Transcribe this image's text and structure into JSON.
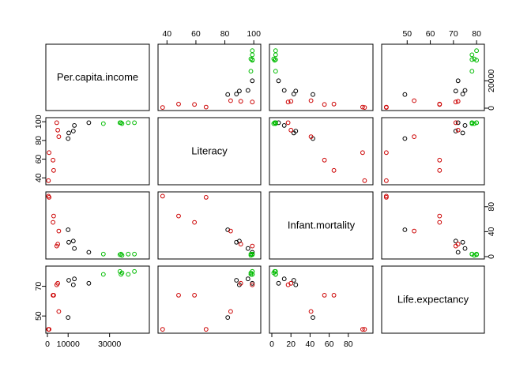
{
  "chart_data": {
    "type": "scatter",
    "subtype": "pairs-matrix",
    "variables": [
      "Per.capita.income",
      "Literacy",
      "Infant.mortality",
      "Life.expectancy"
    ],
    "axis_ranges": {
      "Per.capita.income": [
        0,
        45000
      ],
      "Literacy": [
        36,
        101
      ],
      "Infant.mortality": [
        0,
        100
      ],
      "Life.expectancy": [
        40,
        82
      ]
    },
    "ticks": {
      "Per.capita.income": {
        "values": [
          0,
          10000,
          30000
        ],
        "labels": [
          "0",
          "10000",
          "30000"
        ]
      },
      "Per.capita.income_right": {
        "values": [
          0,
          20000
        ],
        "labels": [
          "0",
          "20000"
        ]
      },
      "Literacy": {
        "values": [
          40,
          60,
          80,
          100
        ],
        "labels": [
          "40",
          "60",
          "80",
          "100"
        ]
      },
      "Infant.mortality": {
        "values": [
          0,
          20,
          40,
          60,
          80
        ],
        "labels": [
          "0",
          "20",
          "40",
          "60",
          "80"
        ]
      },
      "Infant.mortality_right": {
        "values": [
          0,
          40,
          80
        ],
        "labels": [
          "0",
          "40",
          "80"
        ]
      },
      "Life.expectancy": {
        "values": [
          50,
          70
        ],
        "labels": [
          "50",
          "70"
        ]
      },
      "Life.expectancy_top": {
        "values": [
          50,
          60,
          70,
          80
        ],
        "labels": [
          "50",
          "60",
          "70",
          "80"
        ]
      }
    },
    "groups": [
      {
        "color": "#000000",
        "points": [
          {
            "Per.capita.income": 10300,
            "Literacy": 88,
            "Infant.mortality": 23,
            "Life.expectancy": 74
          },
          {
            "Per.capita.income": 13000,
            "Literacy": 96,
            "Infant.mortality": 13,
            "Life.expectancy": 75
          },
          {
            "Per.capita.income": 12500,
            "Literacy": 90,
            "Infant.mortality": 25,
            "Life.expectancy": 71
          },
          {
            "Per.capita.income": 10000,
            "Literacy": 82,
            "Infant.mortality": 43,
            "Life.expectancy": 49
          },
          {
            "Per.capita.income": 20000,
            "Literacy": 99,
            "Infant.mortality": 7,
            "Life.expectancy": 72
          }
        ]
      },
      {
        "color": "#cc0000",
        "points": [
          {
            "Per.capita.income": 500,
            "Literacy": 37,
            "Infant.mortality": 97,
            "Life.expectancy": 41
          },
          {
            "Per.capita.income": 800,
            "Literacy": 67,
            "Infant.mortality": 95,
            "Life.expectancy": 41
          },
          {
            "Per.capita.income": 2700,
            "Literacy": 59,
            "Infant.mortality": 55,
            "Life.expectancy": 64
          },
          {
            "Per.capita.income": 3000,
            "Literacy": 48,
            "Infant.mortality": 65,
            "Life.expectancy": 64
          },
          {
            "Per.capita.income": 4500,
            "Literacy": 99,
            "Infant.mortality": 17,
            "Life.expectancy": 71
          },
          {
            "Per.capita.income": 5000,
            "Literacy": 91,
            "Infant.mortality": 20,
            "Life.expectancy": 72
          },
          {
            "Per.capita.income": 5500,
            "Literacy": 84,
            "Infant.mortality": 41,
            "Life.expectancy": 53
          }
        ]
      },
      {
        "color": "#00bb00",
        "points": [
          {
            "Per.capita.income": 27000,
            "Literacy": 98,
            "Infant.mortality": 4,
            "Life.expectancy": 78
          },
          {
            "Per.capita.income": 35000,
            "Literacy": 99,
            "Infant.mortality": 3,
            "Life.expectancy": 80
          },
          {
            "Per.capita.income": 35500,
            "Literacy": 99,
            "Infant.mortality": 4,
            "Life.expectancy": 78
          },
          {
            "Per.capita.income": 36000,
            "Literacy": 98,
            "Infant.mortality": 2,
            "Life.expectancy": 79
          },
          {
            "Per.capita.income": 39000,
            "Literacy": 99,
            "Infant.mortality": 4,
            "Life.expectancy": 78
          },
          {
            "Per.capita.income": 42000,
            "Literacy": 99,
            "Infant.mortality": 4,
            "Life.expectancy": 80
          }
        ]
      }
    ],
    "legend": "none",
    "grid": false
  }
}
